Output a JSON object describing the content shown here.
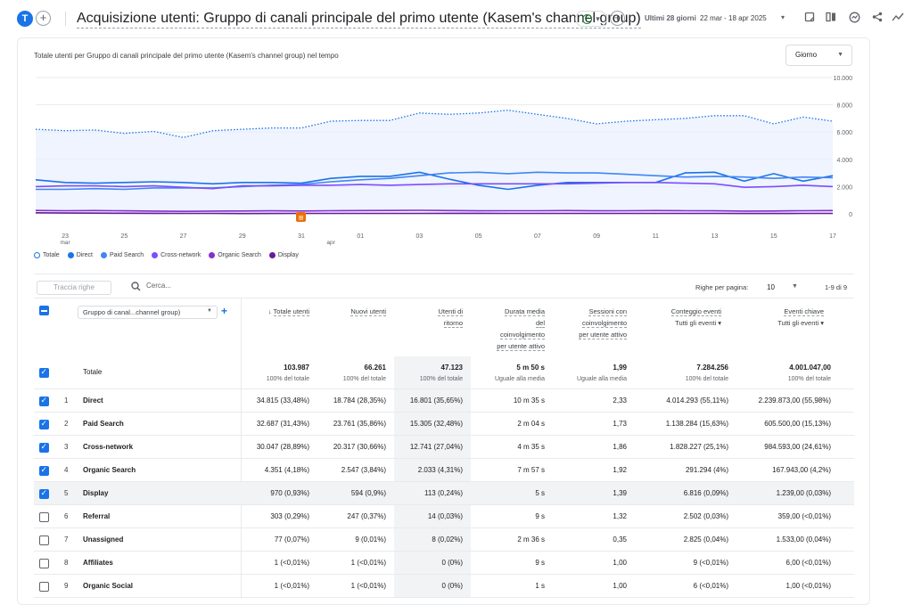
{
  "header": {
    "avatar_letter": "T",
    "title": "Acquisizione utenti: Gruppo di canali principale del primo utente (Kasem's channel group)",
    "date_label": "Ultimi 28 giorni",
    "date_range": "22 mar - 18 apr 2025"
  },
  "chart": {
    "title": "Totale utenti per Gruppo di canali principale del primo utente (Kasem's channel group) nel tempo",
    "granularity": "Giorno",
    "annotation_badge": "⊞"
  },
  "chart_data": {
    "type": "line",
    "x": [
      "22 mar",
      "23 mar",
      "24 mar",
      "25 mar",
      "26 mar",
      "27 mar",
      "28 mar",
      "29 mar",
      "30 mar",
      "31 mar",
      "01 apr",
      "02 apr",
      "03 apr",
      "04 apr",
      "05 apr",
      "06 apr",
      "07 apr",
      "08 apr",
      "09 apr",
      "10 apr",
      "11 apr",
      "12 apr",
      "13 apr",
      "14 apr",
      "15 apr",
      "16 apr",
      "17 apr",
      "18 apr"
    ],
    "x_tick_labels": [
      "23",
      "25",
      "27",
      "29",
      "31",
      "01",
      "03",
      "05",
      "07",
      "09",
      "11",
      "13",
      "15",
      "17"
    ],
    "x_month_labels": [
      "mar",
      "apr"
    ],
    "y_tick_labels": [
      "10.000",
      "8.000",
      "6.000",
      "4.000",
      "2.000",
      "0"
    ],
    "ylim": [
      0,
      10000
    ],
    "series": [
      {
        "name": "Totale",
        "color": "#1a73e8",
        "style": "dotted",
        "values": [
          6200,
          6100,
          6150,
          5900,
          6050,
          5600,
          6100,
          6200,
          6300,
          6300,
          6800,
          6850,
          6850,
          7400,
          7300,
          7400,
          7600,
          7300,
          7000,
          6600,
          6800,
          6900,
          7000,
          7200,
          7200,
          6600,
          7100,
          6800
        ]
      },
      {
        "name": "Direct",
        "color": "#1a73e8",
        "values": [
          2500,
          2300,
          2250,
          2300,
          2350,
          2300,
          2200,
          2300,
          2300,
          2250,
          2600,
          2750,
          2750,
          3050,
          2550,
          2100,
          1800,
          2100,
          2300,
          2300,
          2300,
          2300,
          3000,
          3050,
          2400,
          2950,
          2400,
          2800
        ]
      },
      {
        "name": "Paid Search",
        "color": "#4285f4",
        "values": [
          1800,
          1800,
          1850,
          1800,
          1900,
          1900,
          1900,
          2000,
          2100,
          2150,
          2350,
          2500,
          2600,
          2800,
          3000,
          3050,
          2950,
          3050,
          3000,
          3000,
          2900,
          2800,
          2700,
          2750,
          2700,
          2600,
          2700,
          2650
        ]
      },
      {
        "name": "Cross-network",
        "color": "#7c4dff",
        "values": [
          2000,
          2050,
          2050,
          2000,
          2050,
          1950,
          1850,
          2050,
          2050,
          2100,
          2100,
          2150,
          2100,
          2150,
          2200,
          2200,
          2200,
          2200,
          2200,
          2250,
          2300,
          2300,
          2250,
          2200,
          1950,
          2000,
          2100,
          2000
        ]
      },
      {
        "name": "Organic Search",
        "color": "#8430ce",
        "values": [
          250,
          230,
          240,
          220,
          200,
          180,
          200,
          210,
          220,
          210,
          230,
          240,
          250,
          260,
          240,
          220,
          230,
          230,
          240,
          220,
          230,
          240,
          230,
          220,
          200,
          210,
          230,
          240
        ]
      },
      {
        "name": "Display",
        "color": "#6a1b9a",
        "values": [
          80,
          60,
          50,
          45,
          40,
          30,
          30,
          20,
          25,
          30,
          30,
          30,
          30,
          35,
          40,
          40,
          35,
          30,
          30,
          35,
          30,
          30,
          30,
          30,
          25,
          25,
          30,
          35
        ]
      }
    ]
  },
  "legend": [
    {
      "label": "Totale",
      "color": "#ffffff",
      "border": "#1a73e8"
    },
    {
      "label": "Direct",
      "color": "#1a73e8",
      "border": "#1a73e8"
    },
    {
      "label": "Paid Search",
      "color": "#4285f4",
      "border": "#4285f4"
    },
    {
      "label": "Cross-network",
      "color": "#7c4dff",
      "border": "#7c4dff"
    },
    {
      "label": "Organic Search",
      "color": "#8430ce",
      "border": "#8430ce"
    },
    {
      "label": "Display",
      "color": "#6a1b9a",
      "border": "#6a1b9a"
    }
  ],
  "toolbar": {
    "track_rows": "Traccia righe",
    "search_placeholder": "Cerca...",
    "rows_per_page_label": "Righe per pagina:",
    "rows_per_page": "10",
    "pager": "1-9 di 9"
  },
  "table": {
    "dimension_select": "Gruppo di canal...channel group)",
    "headers": {
      "total_users": "Totale utenti",
      "new_users": "Nuovi utenti",
      "returning_1": "Utenti di",
      "returning_2": "ritorno",
      "avg_eng_1": "Durata media",
      "avg_eng_2": "del",
      "avg_eng_3": "coinvolgimento",
      "avg_eng_4": "per utente attivo",
      "sessions_1": "Sessioni con",
      "sessions_2": "coinvolgimento",
      "sessions_3": "per utente attivo",
      "events_1": "Conteggio eventi",
      "events_2": "Tutti gli eventi",
      "key_1": "Eventi chiave",
      "key_2": "Tutti gli eventi"
    },
    "totals": {
      "label": "Totale",
      "total_users": "103.987",
      "total_users_sub": "100% del totale",
      "new_users": "66.261",
      "new_users_sub": "100% del totale",
      "returning": "47.123",
      "returning_sub": "100% del totale",
      "avg_eng": "5 m 50 s",
      "avg_eng_sub": "Uguale alla media",
      "sessions": "1,99",
      "sessions_sub": "Uguale alla media",
      "events": "7.284.256",
      "events_sub": "100% del totale",
      "key": "4.001.047,00",
      "key_sub": "100% del totale"
    },
    "rows": [
      {
        "idx": "1",
        "name": "Direct",
        "tu": "34.815 (33,48%)",
        "nu": "18.784 (28,35%)",
        "ret": "16.801 (35,65%)",
        "eng": "10 m 35 s",
        "ses": "2,33",
        "ev": "4.014.293 (55,11%)",
        "key": "2.239.873,00 (55,98%)",
        "checked": true
      },
      {
        "idx": "2",
        "name": "Paid Search",
        "tu": "32.687 (31,43%)",
        "nu": "23.761 (35,86%)",
        "ret": "15.305 (32,48%)",
        "eng": "2 m 04 s",
        "ses": "1,73",
        "ev": "1.138.284 (15,63%)",
        "key": "605.500,00 (15,13%)",
        "checked": true
      },
      {
        "idx": "3",
        "name": "Cross-network",
        "tu": "30.047 (28,89%)",
        "nu": "20.317 (30,66%)",
        "ret": "12.741 (27,04%)",
        "eng": "4 m 35 s",
        "ses": "1,86",
        "ev": "1.828.227 (25,1%)",
        "key": "984.593,00 (24,61%)",
        "checked": true
      },
      {
        "idx": "4",
        "name": "Organic Search",
        "tu": "4.351 (4,18%)",
        "nu": "2.547 (3,84%)",
        "ret": "2.033 (4,31%)",
        "eng": "7 m 57 s",
        "ses": "1,92",
        "ev": "291.294 (4%)",
        "key": "167.943,00 (4,2%)",
        "checked": true
      },
      {
        "idx": "5",
        "name": "Display",
        "tu": "970 (0,93%)",
        "nu": "594 (0,9%)",
        "ret": "113 (0,24%)",
        "eng": "5 s",
        "ses": "1,39",
        "ev": "6.816 (0,09%)",
        "key": "1.239,00 (0,03%)",
        "checked": true
      },
      {
        "idx": "6",
        "name": "Referral",
        "tu": "303 (0,29%)",
        "nu": "247 (0,37%)",
        "ret": "14 (0,03%)",
        "eng": "9 s",
        "ses": "1,32",
        "ev": "2.502 (0,03%)",
        "key": "359,00 (<0,01%)",
        "checked": false
      },
      {
        "idx": "7",
        "name": "Unassigned",
        "tu": "77 (0,07%)",
        "nu": "9 (0,01%)",
        "ret": "8 (0,02%)",
        "eng": "2 m 36 s",
        "ses": "0,35",
        "ev": "2.825 (0,04%)",
        "key": "1.533,00 (0,04%)",
        "checked": false
      },
      {
        "idx": "8",
        "name": "Affiliates",
        "tu": "1 (<0,01%)",
        "nu": "1 (<0,01%)",
        "ret": "0 (0%)",
        "eng": "9 s",
        "ses": "1,00",
        "ev": "9 (<0,01%)",
        "key": "6,00 (<0,01%)",
        "checked": false
      },
      {
        "idx": "9",
        "name": "Organic Social",
        "tu": "1 (<0,01%)",
        "nu": "1 (<0,01%)",
        "ret": "0 (0%)",
        "eng": "1 s",
        "ses": "1,00",
        "ev": "6 (<0,01%)",
        "key": "1,00 (<0,01%)",
        "checked": false
      }
    ]
  }
}
